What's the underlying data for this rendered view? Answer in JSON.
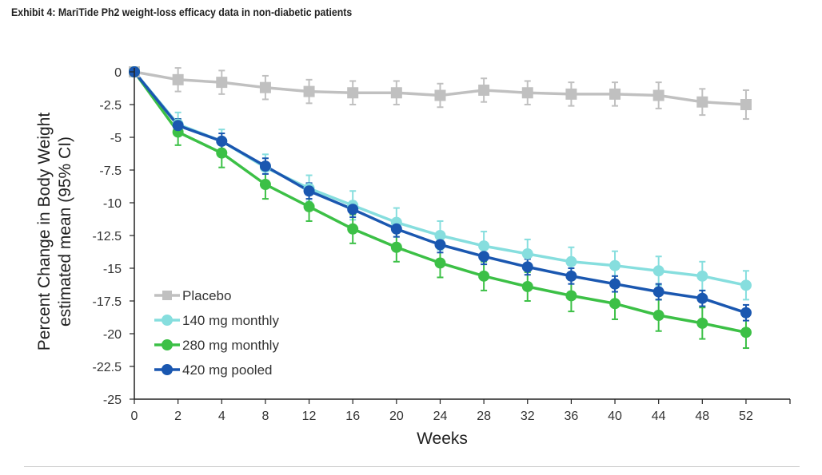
{
  "title": "Exhibit 4: MariTide Ph2 weight-loss efficacy data in non-diabetic patients",
  "chart_data": {
    "type": "line",
    "title": "Exhibit 4: MariTide Ph2 weight-loss efficacy data in non-diabetic patients",
    "xlabel": "Weeks",
    "ylabel": [
      "Percent Change in Body Weight",
      "estimated mean (95% CI)"
    ],
    "categories": [
      0,
      2,
      4,
      8,
      12,
      16,
      20,
      24,
      28,
      32,
      36,
      40,
      44,
      48,
      52
    ],
    "y_ticks": [
      0,
      -2.5,
      -5,
      -7.5,
      -10,
      -12.5,
      -15,
      -17.5,
      -20,
      -22.5,
      -25
    ],
    "y_tick_labels": [
      "0",
      "-2.5",
      "-5",
      "-7.5",
      "-10",
      "-12.5",
      "-15",
      "-17.5",
      "-20",
      "-22.5",
      "-25"
    ],
    "ylim": [
      -25,
      0
    ],
    "legend_position": "bottom-left",
    "series": [
      {
        "name": "Placebo",
        "color": "#c0c0c0",
        "marker": "square",
        "values": [
          0,
          -0.6,
          -0.8,
          -1.2,
          -1.5,
          -1.6,
          -1.6,
          -1.8,
          -1.4,
          -1.6,
          -1.7,
          -1.7,
          -1.8,
          -2.3,
          -2.5
        ],
        "ci": [
          0,
          0.9,
          0.9,
          0.9,
          0.9,
          0.9,
          0.9,
          0.9,
          0.9,
          0.9,
          0.9,
          0.9,
          1.0,
          1.0,
          1.1
        ]
      },
      {
        "name": "140 mg monthly",
        "color": "#86dede",
        "marker": "circle",
        "values": [
          0,
          -4.0,
          -5.3,
          -7.3,
          -8.9,
          -10.2,
          -11.5,
          -12.5,
          -13.3,
          -13.9,
          -14.5,
          -14.8,
          -15.2,
          -15.6,
          -16.3
        ],
        "ci": [
          0,
          0.9,
          0.9,
          1.0,
          1.0,
          1.1,
          1.1,
          1.1,
          1.1,
          1.1,
          1.1,
          1.1,
          1.1,
          1.1,
          1.1
        ]
      },
      {
        "name": "280 mg monthly",
        "color": "#3cc046",
        "marker": "circle",
        "values": [
          0,
          -4.6,
          -6.2,
          -8.6,
          -10.3,
          -12.0,
          -13.4,
          -14.6,
          -15.6,
          -16.4,
          -17.1,
          -17.7,
          -18.6,
          -19.2,
          -19.9
        ],
        "ci": [
          0,
          1.0,
          1.1,
          1.1,
          1.1,
          1.1,
          1.1,
          1.1,
          1.1,
          1.1,
          1.2,
          1.2,
          1.2,
          1.2,
          1.2
        ]
      },
      {
        "name": "420 mg pooled",
        "color": "#1a57b0",
        "marker": "circle",
        "values": [
          0,
          -4.1,
          -5.3,
          -7.2,
          -9.1,
          -10.5,
          -12.0,
          -13.2,
          -14.1,
          -14.9,
          -15.6,
          -16.2,
          -16.8,
          -17.3,
          -18.4
        ],
        "ci": [
          0,
          0.5,
          0.6,
          0.6,
          0.6,
          0.6,
          0.6,
          0.6,
          0.6,
          0.6,
          0.6,
          0.6,
          0.6,
          0.6,
          0.6
        ]
      }
    ]
  }
}
